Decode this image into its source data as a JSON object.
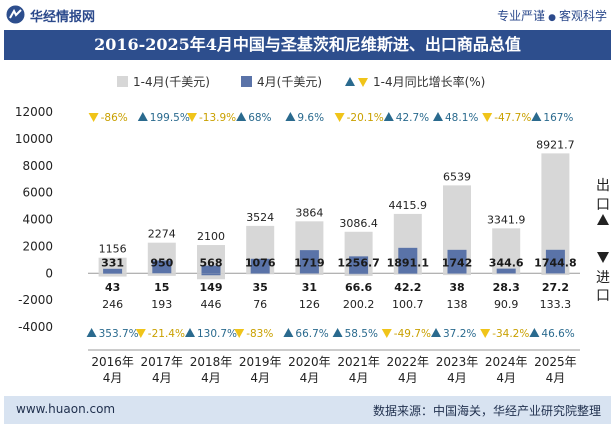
{
  "header": {
    "brand": "华经情报网",
    "slogan_left": "专业严谨",
    "slogan_dot": "●",
    "slogan_right": "客观科学"
  },
  "footer": {
    "url": "www.huaon.com",
    "source": "数据来源：中国海关，华经产业研究院整理"
  },
  "colors": {
    "cumulative_bar": "#d7d7d7",
    "month_bar": "#5a73a8",
    "up_triangle": "#2a6a8e",
    "down_triangle": "#f0c419",
    "title_bg": "#2d4e8d"
  },
  "chart_data": {
    "type": "bar",
    "title": "2016-2025年4月中国与圣基茨和尼维斯进、出口商品总值",
    "categories": [
      "2016年\n4月",
      "2017年\n4月",
      "2018年\n4月",
      "2019年\n4月",
      "2020年\n4月",
      "2021年\n4月",
      "2022年\n4月",
      "2023年\n4月",
      "2024年\n4月",
      "2025年\n4月"
    ],
    "ylim": [
      -4000,
      12000
    ],
    "yticks": [
      -4000,
      -2000,
      0,
      2000,
      4000,
      6000,
      8000,
      10000,
      12000
    ],
    "legend": [
      {
        "name": "1-4月(千美元)",
        "kind": "bar-cumulative"
      },
      {
        "name": "4月(千美元)",
        "kind": "bar-month"
      },
      {
        "name": "1-4月同比增长率(%)",
        "kind": "triangles"
      }
    ],
    "side_labels": {
      "export": "出口",
      "import": "进口"
    },
    "export": {
      "cumulative": [
        1156,
        2274,
        2100,
        3524,
        3864,
        3086.4,
        4415.9,
        6539,
        3341.9,
        8921.7
      ],
      "month": [
        331,
        950,
        568,
        1076,
        1719,
        1256.7,
        1891.1,
        1742,
        344.6,
        1744.8
      ],
      "cumulative_labels": [
        "1156",
        "2274",
        "2100",
        "3524",
        "3864",
        "3086.4",
        "4415.9",
        "6539",
        "3341.9",
        "8921.7"
      ],
      "month_labels": [
        "331",
        "950",
        "568",
        "1076",
        "1719",
        "1256.7",
        "1891.1",
        "1742",
        "344.6",
        "1744.8"
      ],
      "growth": [
        "-86%",
        "199.5%",
        "-13.9%",
        "68%",
        "9.6%",
        "-20.1%",
        "42.7%",
        "48.1%",
        "-47.7%",
        "167%"
      ],
      "growth_up": [
        false,
        true,
        false,
        true,
        true,
        false,
        true,
        true,
        false,
        true
      ]
    },
    "import": {
      "cumulative": [
        246,
        193,
        446,
        76,
        126,
        200.2,
        100.7,
        138,
        90.9,
        133.3
      ],
      "month": [
        43,
        15,
        149,
        35,
        31,
        66.6,
        42.2,
        38,
        28.3,
        27.2
      ],
      "cumulative_labels": [
        "246",
        "193",
        "446",
        "76",
        "126",
        "200.2",
        "100.7",
        "138",
        "90.9",
        "133.3"
      ],
      "month_labels": [
        "43",
        "15",
        "149",
        "35",
        "31",
        "66.6",
        "42.2",
        "38",
        "28.3",
        "27.2"
      ],
      "growth": [
        "353.7%",
        "-21.4%",
        "130.7%",
        "-83%",
        "66.7%",
        "58.5%",
        "-49.7%",
        "37.2%",
        "-34.2%",
        "46.6%"
      ],
      "growth_up": [
        true,
        false,
        true,
        false,
        true,
        true,
        false,
        true,
        false,
        true
      ]
    }
  }
}
